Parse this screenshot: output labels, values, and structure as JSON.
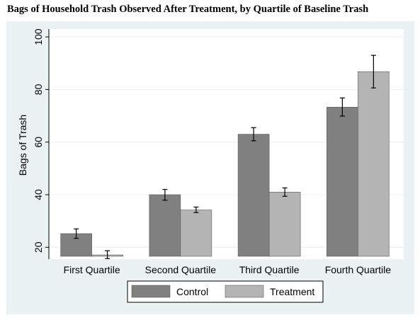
{
  "chart_data": {
    "type": "bar",
    "title": "Bags of Household Trash Observed After Treatment, by Quartile of Baseline Trash",
    "xlabel": "",
    "ylabel": "Bags of Trash",
    "ylim": [
      15.5,
      103
    ],
    "yticks": [
      20,
      40,
      60,
      80,
      100
    ],
    "grid": true,
    "legend_position": "bottom",
    "categories": [
      "First Quartile",
      "Second Quartile",
      "Third Quartile",
      "Fourth Quartile"
    ],
    "series": [
      {
        "name": "Control",
        "color": "#808080",
        "values": [
          25.2,
          40.0,
          63.0,
          73.3
        ],
        "error_low": [
          23.4,
          37.9,
          60.5,
          69.9
        ],
        "error_high": [
          27.0,
          42.0,
          65.5,
          76.8
        ]
      },
      {
        "name": "Treatment",
        "color": "#b4b4b4",
        "values": [
          17.1,
          34.2,
          41.0,
          86.8
        ],
        "error_low": [
          15.7,
          33.2,
          39.4,
          80.6
        ],
        "error_high": [
          18.7,
          35.3,
          42.6,
          93.0
        ]
      }
    ]
  },
  "colors": {
    "outer_background": "#eaf2f3",
    "plot_background": "#ffffff",
    "gridline": "#eaf2f3",
    "error_bar": "#000000"
  }
}
